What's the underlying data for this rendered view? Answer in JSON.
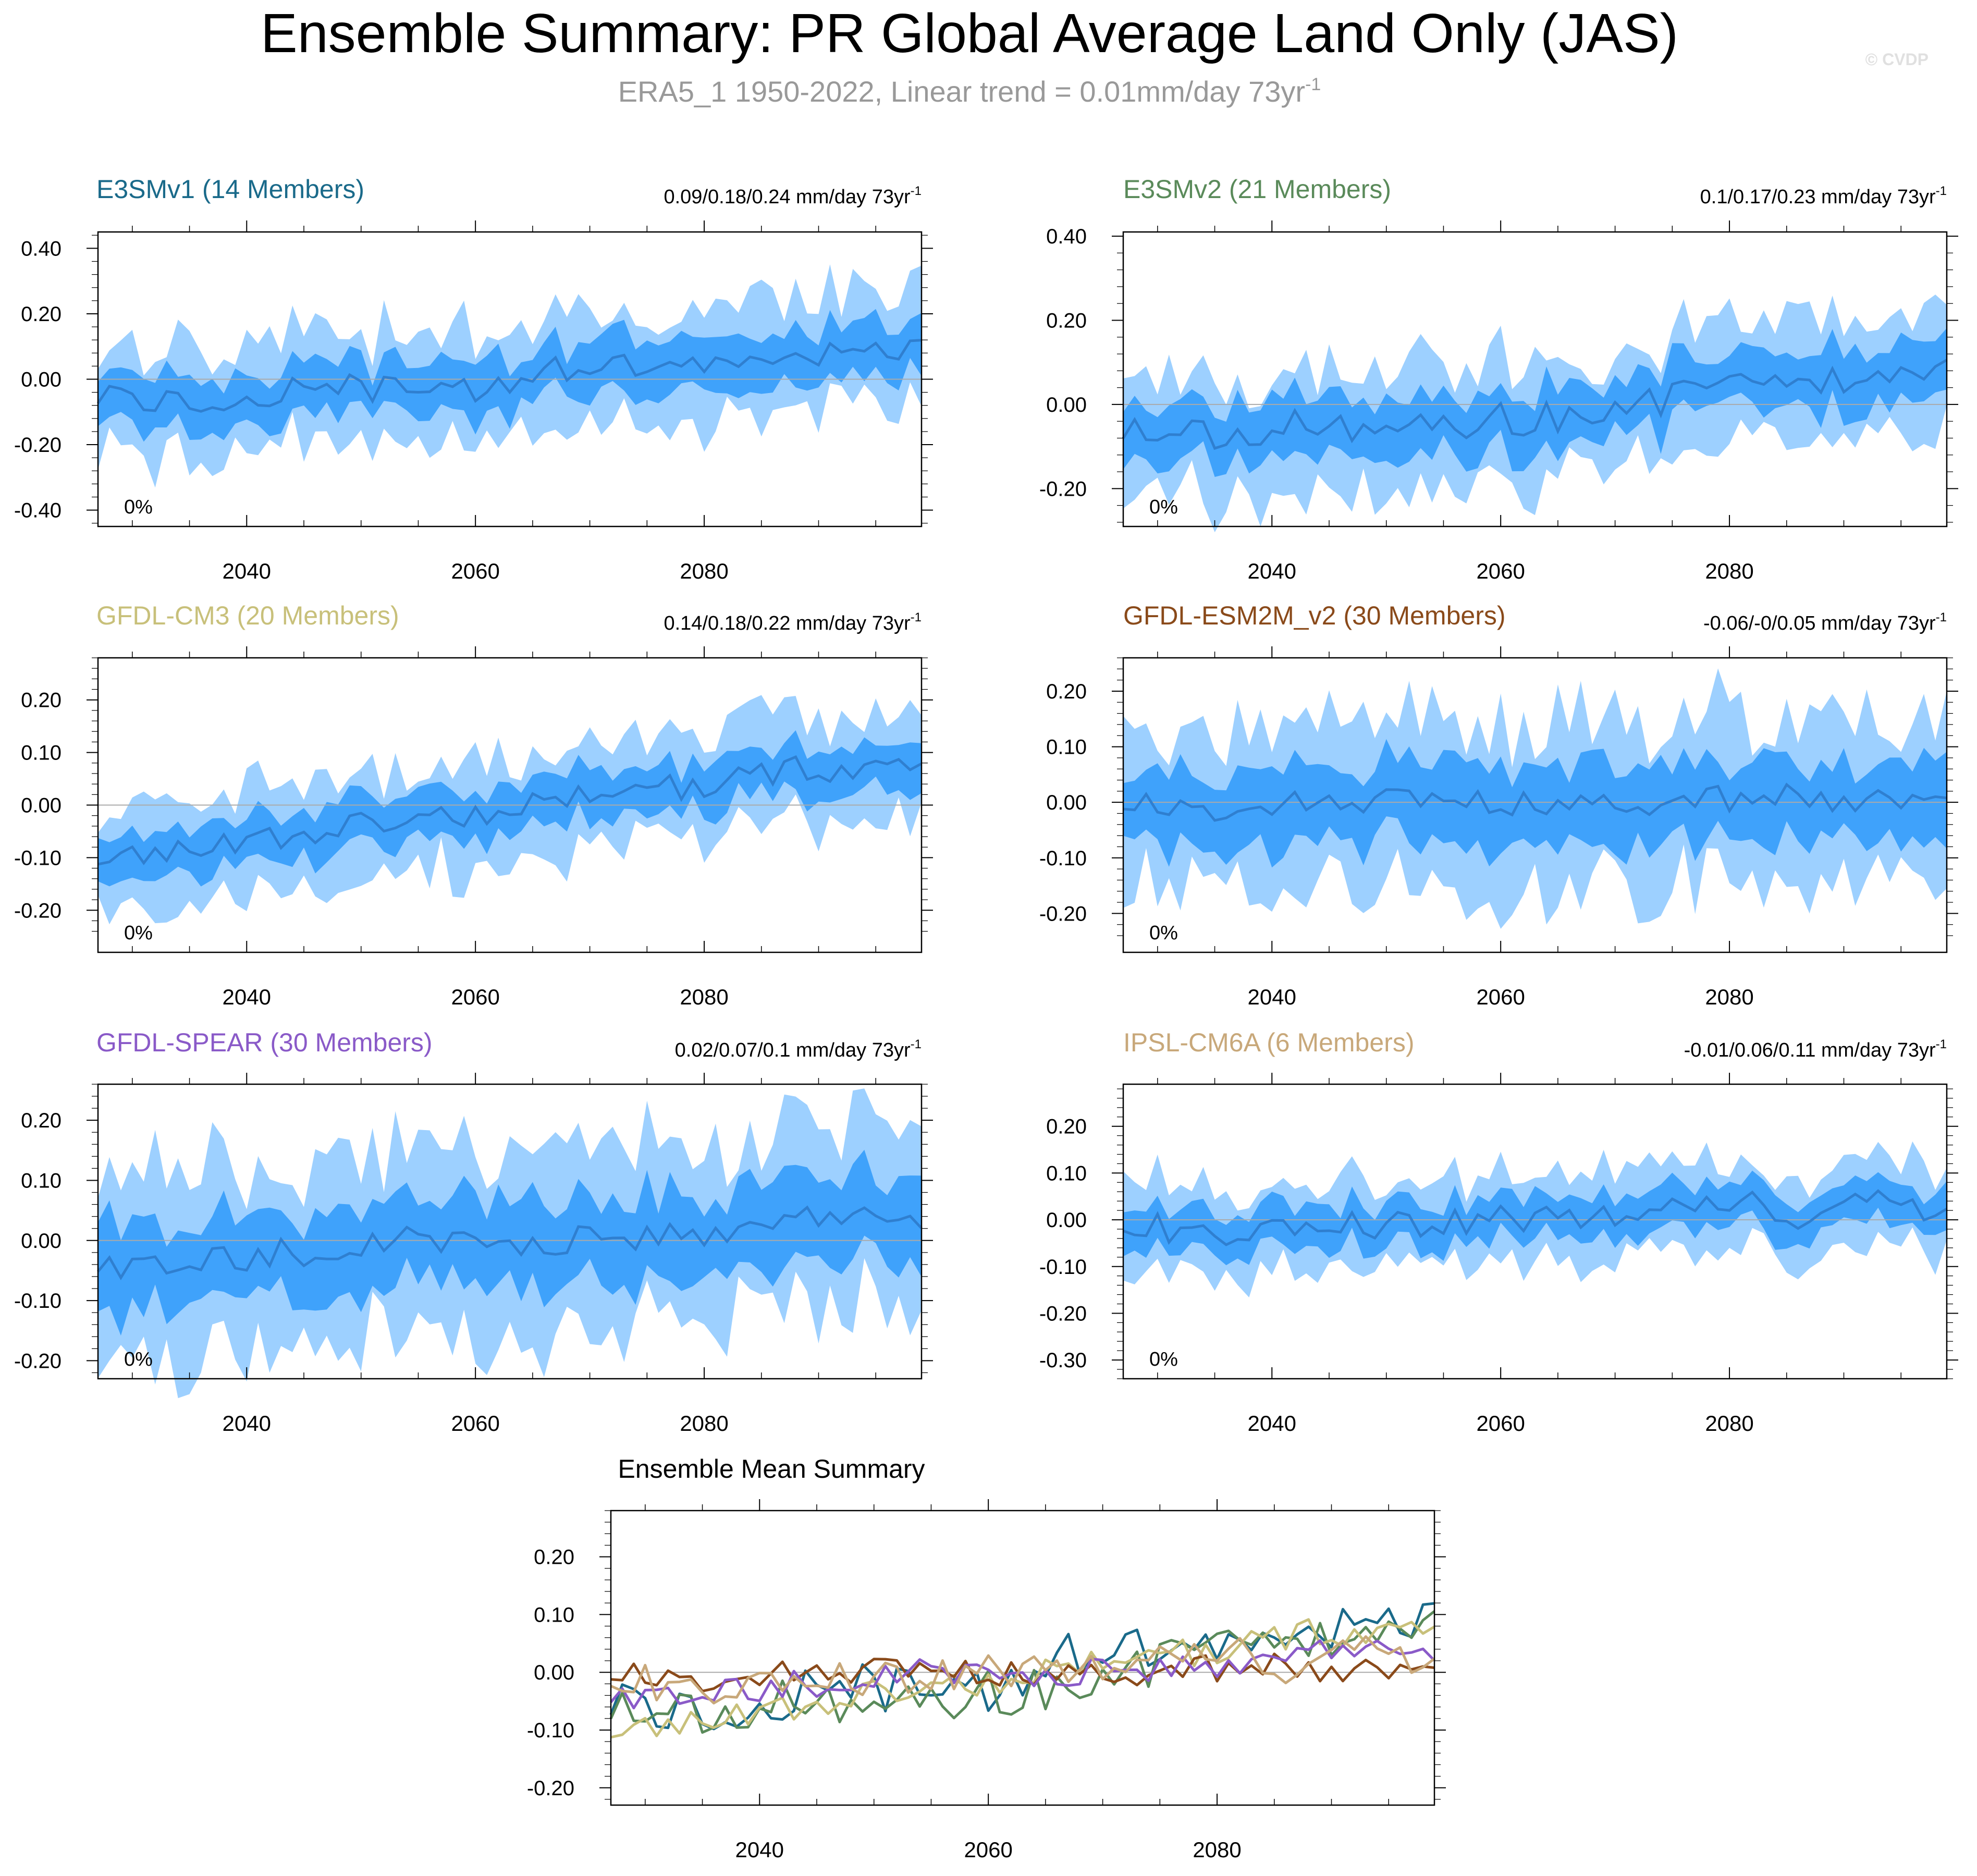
{
  "header": {
    "title": "Ensemble Summary: PR Global Average Land Only (JAS)",
    "subtitle": "ERA5_1 1950-2022, Linear trend = 0.01mm/day 73yr",
    "subtitle_sup": "-1",
    "watermark": "© CVDP"
  },
  "colors": {
    "outer_band": "#9dd0ff",
    "inner_band": "#3fa2fb",
    "mean_line": "#2f7fd0",
    "zero_line": "#aaaaaa"
  },
  "chart_data": [
    {
      "type": "area",
      "title": "E3SMv1 (14 Members)",
      "title_color": "#1a6a8a",
      "trend_label": "0.09/0.18/0.24 mm/day 73yr",
      "trend_sup": "-1",
      "percent_label": "0%",
      "x_start": 2027,
      "x_end": 2099,
      "ylim": [
        -0.45,
        0.45
      ],
      "yticks": [
        0.4,
        0.2,
        0.0,
        -0.2,
        -0.4
      ],
      "ytick_labels": [
        "0.40",
        "0.20",
        "0.00",
        "-0.20",
        "-0.40"
      ],
      "xticks": [
        2040,
        2060,
        2080
      ],
      "mean_anchors": [
        [
          2027,
          -0.05
        ],
        [
          2035,
          -0.07
        ],
        [
          2042,
          -0.05
        ],
        [
          2048,
          -0.02
        ],
        [
          2055,
          -0.04
        ],
        [
          2060,
          -0.03
        ],
        [
          2065,
          0.02
        ],
        [
          2072,
          0.03
        ],
        [
          2080,
          0.02
        ],
        [
          2086,
          0.05
        ],
        [
          2092,
          0.1
        ],
        [
          2099,
          0.08
        ]
      ],
      "inner_width": 0.08,
      "outer_width": 0.17,
      "noise": 0.045,
      "seed": 11
    },
    {
      "type": "area",
      "title": "E3SMv2 (21 Members)",
      "title_color": "#5a8a5a",
      "trend_label": "0.1/0.17/0.23 mm/day 73yr",
      "trend_sup": "-1",
      "percent_label": "0%",
      "x_start": 2027,
      "x_end": 2099,
      "ylim": [
        -0.29,
        0.41
      ],
      "yticks": [
        0.4,
        0.2,
        0.0,
        -0.2
      ],
      "ytick_labels": [
        "0.40",
        "0.20",
        "0.00",
        "-0.20"
      ],
      "xticks": [
        2040,
        2060,
        2080
      ],
      "mean_anchors": [
        [
          2027,
          -0.06
        ],
        [
          2035,
          -0.07
        ],
        [
          2042,
          -0.05
        ],
        [
          2050,
          -0.06
        ],
        [
          2058,
          -0.04
        ],
        [
          2065,
          -0.03
        ],
        [
          2072,
          0.0
        ],
        [
          2080,
          0.04
        ],
        [
          2088,
          0.05
        ],
        [
          2094,
          0.09
        ],
        [
          2099,
          0.1
        ]
      ],
      "inner_width": 0.07,
      "outer_width": 0.14,
      "noise": 0.04,
      "seed": 23
    },
    {
      "type": "area",
      "title": "GFDL-CM3 (20 Members)",
      "title_color": "#c8c07a",
      "trend_label": "0.14/0.18/0.22 mm/day 73yr",
      "trend_sup": "-1",
      "percent_label": "0%",
      "x_start": 2027,
      "x_end": 2099,
      "ylim": [
        -0.28,
        0.28
      ],
      "yticks": [
        0.2,
        0.1,
        0.0,
        -0.1,
        -0.2
      ],
      "ytick_labels": [
        "0.20",
        "0.10",
        "0.00",
        "-0.10",
        "-0.20"
      ],
      "xticks": [
        2040,
        2060,
        2080
      ],
      "mean_anchors": [
        [
          2027,
          -0.1
        ],
        [
          2035,
          -0.08
        ],
        [
          2043,
          -0.06
        ],
        [
          2050,
          -0.04
        ],
        [
          2058,
          -0.02
        ],
        [
          2065,
          0.0
        ],
        [
          2072,
          0.02
        ],
        [
          2080,
          0.04
        ],
        [
          2088,
          0.07
        ],
        [
          2095,
          0.06
        ],
        [
          2099,
          0.08
        ]
      ],
      "inner_width": 0.045,
      "outer_width": 0.1,
      "noise": 0.025,
      "seed": 37
    },
    {
      "type": "area",
      "title": "GFDL-ESM2M_v2 (30 Members)",
      "title_color": "#8a4a1a",
      "trend_label": "-0.06/-0/0.05 mm/day 73yr",
      "trend_sup": "-1",
      "percent_label": "0%",
      "x_start": 2027,
      "x_end": 2099,
      "ylim": [
        -0.27,
        0.26
      ],
      "yticks": [
        0.2,
        0.1,
        0.0,
        -0.1,
        -0.2
      ],
      "ytick_labels": [
        "0.20",
        "0.10",
        "0.00",
        "-0.10",
        "-0.20"
      ],
      "xticks": [
        2040,
        2060,
        2080
      ],
      "mean_anchors": [
        [
          2027,
          0.0
        ],
        [
          2035,
          -0.01
        ],
        [
          2045,
          0.0
        ],
        [
          2055,
          0.01
        ],
        [
          2065,
          -0.01
        ],
        [
          2075,
          0.0
        ],
        [
          2085,
          0.01
        ],
        [
          2092,
          0.0
        ],
        [
          2099,
          0.0
        ]
      ],
      "inner_width": 0.07,
      "outer_width": 0.15,
      "noise": 0.025,
      "seed": 53
    },
    {
      "type": "area",
      "title": "GFDL-SPEAR (30 Members)",
      "title_color": "#8a5ac8",
      "trend_label": "0.02/0.07/0.1 mm/day 73yr",
      "trend_sup": "-1",
      "percent_label": "0%",
      "x_start": 2027,
      "x_end": 2099,
      "ylim": [
        -0.23,
        0.26
      ],
      "yticks": [
        0.2,
        0.1,
        0.0,
        -0.1,
        -0.2
      ],
      "ytick_labels": [
        "0.20",
        "0.10",
        "0.00",
        "-0.10",
        "-0.20"
      ],
      "xticks": [
        2040,
        2060,
        2080
      ],
      "mean_anchors": [
        [
          2027,
          -0.04
        ],
        [
          2035,
          -0.03
        ],
        [
          2045,
          -0.02
        ],
        [
          2055,
          0.0
        ],
        [
          2065,
          0.0
        ],
        [
          2075,
          0.01
        ],
        [
          2085,
          0.02
        ],
        [
          2092,
          0.05
        ],
        [
          2099,
          0.04
        ]
      ],
      "inner_width": 0.07,
      "outer_width": 0.15,
      "noise": 0.025,
      "seed": 71
    },
    {
      "type": "area",
      "title": "IPSL-CM6A (6 Members)",
      "title_color": "#c8a87a",
      "trend_label": "-0.01/0.06/0.11 mm/day 73yr",
      "trend_sup": "-1",
      "percent_label": "0%",
      "x_start": 2027,
      "x_end": 2099,
      "ylim": [
        -0.34,
        0.29
      ],
      "yticks": [
        0.2,
        0.1,
        0.0,
        -0.1,
        -0.2,
        -0.3
      ],
      "ytick_labels": [
        "0.20",
        "0.10",
        "0.00",
        "-0.10",
        "-0.20",
        "-0.30"
      ],
      "xticks": [
        2040,
        2060,
        2080
      ],
      "mean_anchors": [
        [
          2027,
          -0.01
        ],
        [
          2035,
          -0.03
        ],
        [
          2042,
          -0.02
        ],
        [
          2050,
          -0.01
        ],
        [
          2058,
          0.0
        ],
        [
          2065,
          0.01
        ],
        [
          2072,
          0.0
        ],
        [
          2080,
          0.05
        ],
        [
          2086,
          0.0
        ],
        [
          2092,
          0.04
        ],
        [
          2099,
          0.02
        ]
      ],
      "inner_width": 0.045,
      "outer_width": 0.09,
      "noise": 0.03,
      "seed": 89
    },
    {
      "type": "line",
      "title": "Ensemble Mean Summary",
      "x_start": 2027,
      "x_end": 2099,
      "ylim": [
        -0.23,
        0.28
      ],
      "yticks": [
        0.2,
        0.1,
        0.0,
        -0.1,
        -0.2
      ],
      "ytick_labels": [
        "0.20",
        "0.10",
        "0.00",
        "-0.10",
        "-0.20"
      ],
      "xticks": [
        2040,
        2060,
        2080
      ],
      "series": [
        {
          "name": "E3SMv1 (14 Members)",
          "color": "#1a6a8a",
          "ref": 0
        },
        {
          "name": "E3SMv2 (21 Members)",
          "color": "#5a8a5a",
          "ref": 1
        },
        {
          "name": "GFDL-CM3 (20 Members)",
          "color": "#c8c07a",
          "ref": 2
        },
        {
          "name": "GFDL-ESM2M_v2 (30 Members)",
          "color": "#8a4a1a",
          "ref": 3
        },
        {
          "name": "GFDL-SPEAR (30 Members)",
          "color": "#8a5ac8",
          "ref": 4
        },
        {
          "name": "IPSL-CM6A (6 Members)",
          "color": "#c8a87a",
          "ref": 5
        }
      ]
    }
  ]
}
